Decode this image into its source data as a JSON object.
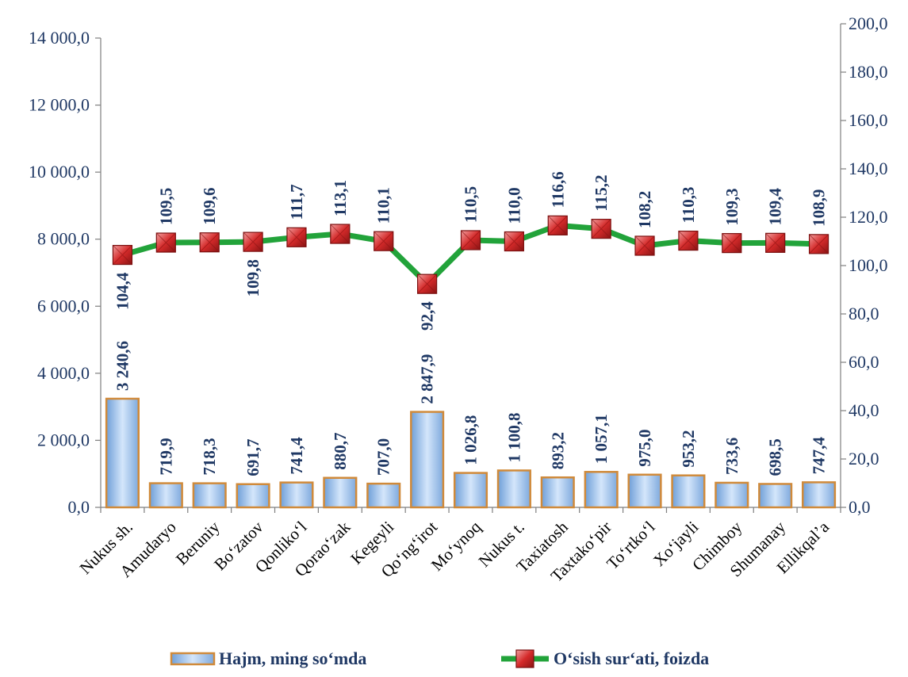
{
  "chart_data": {
    "type": "bar+line",
    "categories": [
      "Nukus sh.",
      "Amudaryo",
      "Beruniy",
      "Bo‘zatov",
      "Qonliko‘l",
      "Qorao‘zak",
      "Kegeyli",
      "Qo‘ng‘irot",
      "Mo‘ynoq",
      "Nukus t.",
      "Taxiatosh",
      "Taxtako‘pir",
      "To‘rtko‘l",
      "Xo‘jayli",
      "Chimboy",
      "Shumanay",
      "Ellikqal’a"
    ],
    "series": [
      {
        "name": "Hajm, ming so‘mda",
        "type": "bar",
        "axis": "left",
        "values": [
          3240.6,
          719.9,
          718.3,
          691.7,
          741.4,
          880.7,
          707.0,
          2847.9,
          1026.8,
          1100.8,
          893.2,
          1057.1,
          975.0,
          953.2,
          733.6,
          698.5,
          747.4
        ],
        "labels": [
          "3 240,6",
          "719,9",
          "718,3",
          "691,7",
          "741,4",
          "880,7",
          "707,0",
          "2 847,9",
          "1 026,8",
          "1 100,8",
          "893,2",
          "1 057,1",
          "975,0",
          "953,2",
          "733,6",
          "698,5",
          "747,4"
        ]
      },
      {
        "name": "O‘sish sur‘ati, foizda",
        "type": "line",
        "axis": "right",
        "values": [
          104.4,
          109.5,
          109.6,
          109.8,
          111.7,
          113.1,
          110.1,
          92.4,
          110.5,
          110.0,
          116.6,
          115.2,
          108.2,
          110.3,
          109.3,
          109.4,
          108.9
        ],
        "labels": [
          "104,4",
          "109,5",
          "109,6",
          "109,8",
          "111,7",
          "113,1",
          "110,1",
          "92,4",
          "110,5",
          "110,0",
          "116,6",
          "115,2",
          "108,2",
          "110,3",
          "109,3",
          "109,4",
          "108,9"
        ]
      }
    ],
    "y_left": {
      "lim": [
        0,
        14000
      ],
      "ticks": [
        "0,0",
        "2 000,0",
        "4 000,0",
        "6 000,0",
        "8 000,0",
        "10 000,0",
        "12 000,0",
        "14 000,0"
      ]
    },
    "y_right": {
      "lim": [
        0,
        200
      ],
      "ticks": [
        "0,0",
        "20,0",
        "40,0",
        "60,0",
        "80,0",
        "100,0",
        "120,0",
        "140,0",
        "160,0",
        "180,0",
        "200,0"
      ]
    },
    "grid": false,
    "legend_position": "bottom",
    "colors": {
      "bar_fill": "#a9c8ee",
      "bar_border": "#d08a3a",
      "line": "#22a33a",
      "marker": "#d93a3a",
      "text": "#1f3864"
    }
  }
}
